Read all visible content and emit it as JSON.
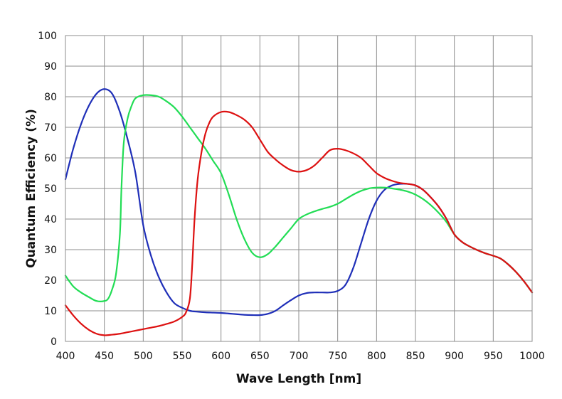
{
  "chart_data": {
    "type": "line",
    "title": "",
    "xlabel": "Wave Length [nm]",
    "ylabel": "Quantum Efficiency (%)",
    "xlim": [
      400,
      1000
    ],
    "ylim": [
      0,
      100
    ],
    "x_ticks": [
      400,
      450,
      500,
      550,
      600,
      650,
      700,
      750,
      800,
      850,
      900,
      950,
      1000
    ],
    "y_ticks": [
      0,
      10,
      20,
      30,
      40,
      50,
      60,
      70,
      80,
      90,
      100
    ],
    "grid": true,
    "legend": "none",
    "series": [
      {
        "color": "#1f2fb8",
        "points": [
          [
            400,
            53
          ],
          [
            410,
            63
          ],
          [
            420,
            71
          ],
          [
            430,
            77
          ],
          [
            440,
            81
          ],
          [
            450,
            82.5
          ],
          [
            460,
            81
          ],
          [
            470,
            75
          ],
          [
            480,
            66
          ],
          [
            490,
            55
          ],
          [
            500,
            38
          ],
          [
            510,
            28
          ],
          [
            520,
            21
          ],
          [
            530,
            16
          ],
          [
            540,
            12.5
          ],
          [
            550,
            11
          ],
          [
            560,
            10
          ],
          [
            570,
            9.7
          ],
          [
            580,
            9.5
          ],
          [
            590,
            9.4
          ],
          [
            600,
            9.3
          ],
          [
            610,
            9.1
          ],
          [
            620,
            8.9
          ],
          [
            630,
            8.7
          ],
          [
            640,
            8.6
          ],
          [
            650,
            8.6
          ],
          [
            660,
            9
          ],
          [
            670,
            10
          ],
          [
            680,
            11.8
          ],
          [
            690,
            13.5
          ],
          [
            700,
            15
          ],
          [
            710,
            15.8
          ],
          [
            720,
            16
          ],
          [
            730,
            16
          ],
          [
            740,
            16
          ],
          [
            750,
            16.5
          ],
          [
            760,
            18.5
          ],
          [
            770,
            24
          ],
          [
            780,
            32
          ],
          [
            790,
            40
          ],
          [
            800,
            46
          ],
          [
            810,
            49.5
          ],
          [
            820,
            51
          ],
          [
            830,
            51.5
          ],
          [
            840,
            51.5
          ],
          [
            850,
            51
          ],
          [
            860,
            49.5
          ],
          [
            870,
            47
          ],
          [
            880,
            44
          ],
          [
            890,
            40
          ],
          [
            900,
            35
          ],
          [
            910,
            32.5
          ],
          [
            920,
            31
          ],
          [
            930,
            29.8
          ],
          [
            940,
            28.8
          ],
          [
            950,
            28
          ],
          [
            960,
            27
          ],
          [
            970,
            25
          ],
          [
            980,
            22.5
          ],
          [
            990,
            19.5
          ],
          [
            1000,
            16
          ]
        ]
      },
      {
        "color": "#22dd55",
        "points": [
          [
            400,
            21.5
          ],
          [
            410,
            18
          ],
          [
            420,
            16
          ],
          [
            430,
            14.5
          ],
          [
            440,
            13.2
          ],
          [
            450,
            13.2
          ],
          [
            455,
            14
          ],
          [
            460,
            17
          ],
          [
            465,
            22
          ],
          [
            470,
            35
          ],
          [
            472,
            50
          ],
          [
            475,
            65
          ],
          [
            480,
            73
          ],
          [
            485,
            77
          ],
          [
            490,
            79.5
          ],
          [
            500,
            80.5
          ],
          [
            510,
            80.5
          ],
          [
            520,
            80
          ],
          [
            530,
            78.5
          ],
          [
            540,
            76.5
          ],
          [
            550,
            73.5
          ],
          [
            560,
            70
          ],
          [
            570,
            66.5
          ],
          [
            580,
            63
          ],
          [
            590,
            59
          ],
          [
            600,
            55
          ],
          [
            610,
            48
          ],
          [
            620,
            40
          ],
          [
            630,
            33.5
          ],
          [
            640,
            29
          ],
          [
            650,
            27.5
          ],
          [
            660,
            28.5
          ],
          [
            670,
            31
          ],
          [
            680,
            34
          ],
          [
            690,
            37
          ],
          [
            700,
            40
          ],
          [
            710,
            41.5
          ],
          [
            720,
            42.5
          ],
          [
            730,
            43.3
          ],
          [
            740,
            44
          ],
          [
            750,
            45
          ],
          [
            760,
            46.5
          ],
          [
            770,
            48
          ],
          [
            780,
            49.2
          ],
          [
            790,
            50
          ],
          [
            800,
            50.3
          ],
          [
            810,
            50.3
          ],
          [
            820,
            50
          ],
          [
            830,
            49.6
          ],
          [
            840,
            49
          ],
          [
            850,
            48
          ],
          [
            860,
            46.5
          ],
          [
            870,
            44.5
          ],
          [
            880,
            42
          ],
          [
            890,
            39
          ],
          [
            900,
            35
          ],
          [
            910,
            32.5
          ],
          [
            920,
            31
          ],
          [
            930,
            29.8
          ],
          [
            940,
            28.8
          ],
          [
            950,
            28
          ],
          [
            960,
            27
          ],
          [
            970,
            25
          ],
          [
            980,
            22.5
          ],
          [
            990,
            19.5
          ],
          [
            1000,
            16
          ]
        ]
      },
      {
        "color": "#dd1111",
        "points": [
          [
            400,
            11.8
          ],
          [
            410,
            8.5
          ],
          [
            420,
            5.8
          ],
          [
            430,
            3.8
          ],
          [
            440,
            2.5
          ],
          [
            450,
            2
          ],
          [
            460,
            2.2
          ],
          [
            470,
            2.5
          ],
          [
            480,
            3
          ],
          [
            490,
            3.5
          ],
          [
            500,
            4
          ],
          [
            510,
            4.5
          ],
          [
            520,
            5
          ],
          [
            530,
            5.7
          ],
          [
            540,
            6.5
          ],
          [
            550,
            8
          ],
          [
            555,
            9.5
          ],
          [
            560,
            14
          ],
          [
            563,
            25
          ],
          [
            566,
            40
          ],
          [
            570,
            53
          ],
          [
            575,
            62
          ],
          [
            580,
            68
          ],
          [
            585,
            71.5
          ],
          [
            590,
            73.5
          ],
          [
            600,
            75
          ],
          [
            610,
            75
          ],
          [
            620,
            74
          ],
          [
            630,
            72.5
          ],
          [
            640,
            70
          ],
          [
            650,
            66
          ],
          [
            660,
            62
          ],
          [
            670,
            59.5
          ],
          [
            680,
            57.5
          ],
          [
            690,
            56
          ],
          [
            700,
            55.5
          ],
          [
            710,
            56
          ],
          [
            720,
            57.5
          ],
          [
            730,
            60
          ],
          [
            740,
            62.5
          ],
          [
            750,
            63
          ],
          [
            760,
            62.5
          ],
          [
            770,
            61.5
          ],
          [
            780,
            60
          ],
          [
            790,
            57.5
          ],
          [
            800,
            55
          ],
          [
            810,
            53.5
          ],
          [
            820,
            52.5
          ],
          [
            830,
            51.8
          ],
          [
            840,
            51.5
          ],
          [
            850,
            51
          ],
          [
            860,
            49.5
          ],
          [
            870,
            47
          ],
          [
            880,
            44
          ],
          [
            890,
            40
          ],
          [
            900,
            35
          ],
          [
            910,
            32.5
          ],
          [
            920,
            31
          ],
          [
            930,
            29.8
          ],
          [
            940,
            28.8
          ],
          [
            950,
            28
          ],
          [
            960,
            27
          ],
          [
            970,
            25
          ],
          [
            980,
            22.5
          ],
          [
            990,
            19.5
          ],
          [
            1000,
            16
          ]
        ]
      }
    ]
  }
}
